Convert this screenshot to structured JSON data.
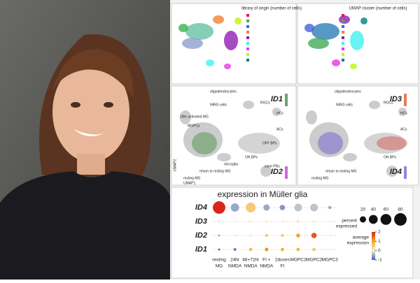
{
  "umap_panels": {
    "library": {
      "title": "library of origin (number of cells)"
    },
    "cell_types": {
      "title": "UMAP cluster (number of cells)"
    },
    "left_labels": [
      "oligodendrocytes",
      "NIRG cells",
      "RGCs",
      "24hr activated MG",
      "MGPCs",
      "HCs",
      "ACs",
      "OFF BPs",
      "ON BPs",
      "microglia",
      "return to resting MG",
      "cone PRs",
      "resting MG"
    ],
    "right_labels": [
      "oligodendrocytes",
      "NIRG cells",
      "RGCs",
      "HCs",
      "ACs",
      "ON BPs",
      "return to resting MG",
      "resting MG"
    ],
    "axis_x": "UMAP1",
    "axis_y": "UMAP2",
    "genes": [
      "ID1",
      "ID3",
      "ID2",
      "ID4"
    ]
  },
  "dotplot": {
    "title": "expression in Müller glia",
    "rows": [
      "ID4",
      "ID3",
      "ID2",
      "ID1"
    ],
    "columns": [
      [
        "resting",
        "MG"
      ],
      [
        "24hr",
        "NMDA"
      ],
      [
        "48+72hr",
        "NMDA"
      ],
      [
        "FI +",
        "NMDA"
      ],
      [
        "2doses",
        "FI"
      ],
      [
        "MGPC1"
      ],
      [
        "MGPC2"
      ],
      [
        "MGPC3"
      ]
    ],
    "percent": [
      [
        80,
        35,
        50,
        20,
        15,
        30,
        30,
        5
      ],
      [
        2,
        2,
        3,
        3,
        3,
        3,
        3,
        2
      ],
      [
        2,
        3,
        5,
        5,
        5,
        8,
        15,
        3
      ],
      [
        2,
        4,
        5,
        6,
        5,
        6,
        6,
        2
      ]
    ],
    "expression": [
      [
        2,
        -0.5,
        0.5,
        -0.5,
        -0.6,
        -0.3,
        -0.3,
        -0.5
      ],
      [
        0,
        0,
        0,
        0,
        0,
        0.2,
        0,
        0
      ],
      [
        -0.5,
        0,
        0,
        0.5,
        0.5,
        1,
        1.6,
        0
      ],
      [
        -1,
        -0.8,
        0.8,
        1.2,
        1,
        0.8,
        0.5,
        0
      ]
    ],
    "size_legend": {
      "title": [
        "percent",
        "expressed"
      ],
      "values": [
        20,
        40,
        60,
        80
      ]
    },
    "color_legend": {
      "title": [
        "average",
        "expression"
      ],
      "ticks": [
        2,
        1,
        0,
        -1
      ]
    }
  }
}
